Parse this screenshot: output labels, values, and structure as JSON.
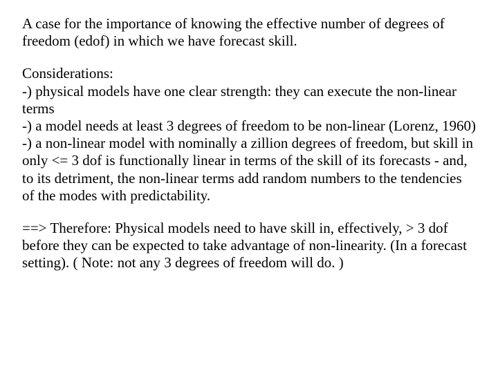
{
  "document": {
    "font_family": "Times New Roman",
    "font_size_pt": 16,
    "text_color": "#000000",
    "background_color": "#ffffff",
    "paragraphs": {
      "intro": "A case for the importance of knowing the effective number of degrees of freedom (edof) in which we have forecast skill.",
      "considerations_header": "Considerations:",
      "consideration_1": "-) physical models have one clear strength: they can execute the non-linear terms",
      "consideration_2": "-) a model needs at least 3 degrees of freedom to be non-linear (Lorenz, 1960)",
      "consideration_3": "-) a non-linear model with nominally a zillion degrees of freedom, but skill in only <= 3 dof is functionally linear in terms of the skill of its forecasts - and, to its detriment,  the non-linear terms add random numbers to the tendencies of the modes with predictability.",
      "conclusion": "==> Therefore: Physical models need to have skill in, effectively, > 3 dof before they can be expected to take advantage of non-linearity.  (In a forecast setting). (   Note: not any 3 degrees of freedom will do. )"
    }
  }
}
